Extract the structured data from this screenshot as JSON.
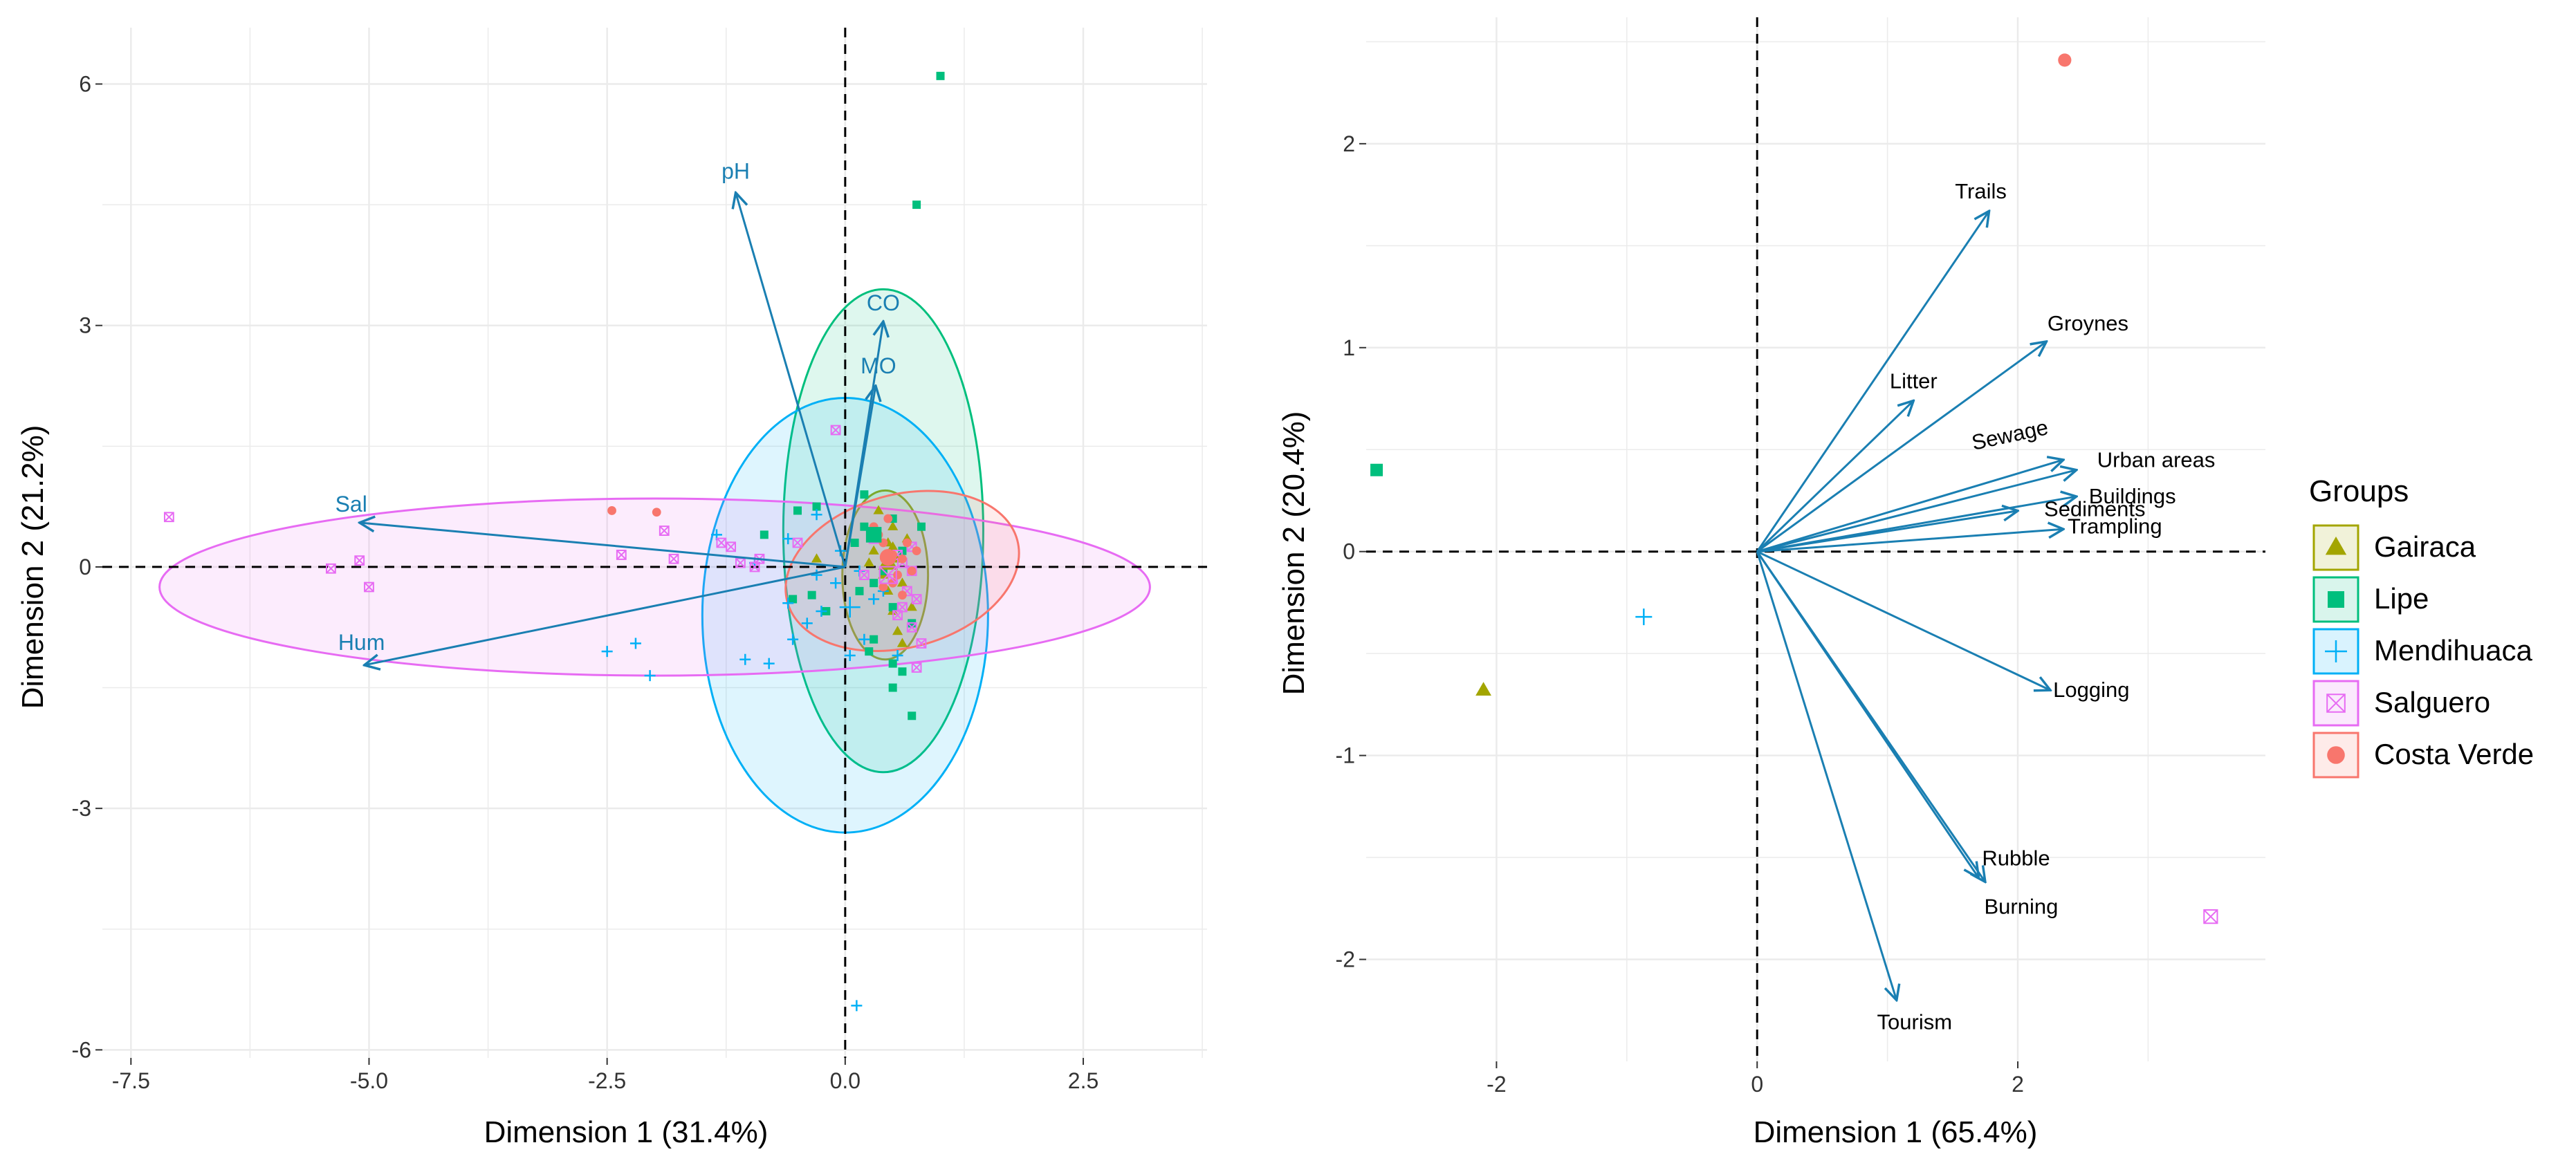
{
  "chart_data": [
    {
      "type": "scatter",
      "subtype": "biplot",
      "xlabel": "Dimension 1 (31.4%)",
      "ylabel": "Dimension 2 (21.2%)",
      "xlim": [
        -7.8,
        3.8
      ],
      "ylim": [
        -6.1,
        6.7
      ],
      "xticks": [
        -7.5,
        -5.0,
        -2.5,
        0.0,
        2.5
      ],
      "xtick_labels": [
        "-7.5",
        "-5.0",
        "-2.5",
        "0.0",
        "2.5"
      ],
      "yticks": [
        -6,
        -3,
        0,
        3,
        6
      ],
      "ytick_labels": [
        "-6",
        "-3",
        "0",
        "3",
        "6"
      ],
      "grid": true,
      "reference_lines": {
        "x": 0,
        "y": 0
      },
      "groups": [
        {
          "name": "Gairaca",
          "color": "#a3a500",
          "marker": "triangle",
          "points": [
            [
              0.3,
              0.2
            ],
            [
              0.45,
              0.3
            ],
            [
              0.55,
              0.1
            ],
            [
              0.4,
              -0.1
            ],
            [
              0.6,
              -0.2
            ],
            [
              0.5,
              0.5
            ],
            [
              0.35,
              0.7
            ],
            [
              0.7,
              -0.5
            ],
            [
              0.55,
              -0.8
            ],
            [
              0.45,
              -0.3
            ],
            [
              0.25,
              0.05
            ],
            [
              0.65,
              0.35
            ],
            [
              0.5,
              -0.55
            ],
            [
              -0.3,
              0.1
            ],
            [
              0.6,
              -0.95
            ],
            [
              0.42,
              0.15
            ],
            [
              0.5,
              0.25
            ]
          ],
          "ellipse": {
            "cx": 0.42,
            "cy": -0.1,
            "rx": 0.45,
            "ry": 1.05,
            "angle": 0
          }
        },
        {
          "name": "Lipe",
          "color": "#00bf7d",
          "marker": "square",
          "points": [
            [
              1.0,
              6.1
            ],
            [
              0.75,
              4.5
            ],
            [
              0.2,
              0.9
            ],
            [
              -0.5,
              0.7
            ],
            [
              -0.85,
              0.4
            ],
            [
              -0.3,
              0.75
            ],
            [
              0.2,
              0.5
            ],
            [
              0.1,
              0.3
            ],
            [
              0.3,
              0.4
            ],
            [
              0.5,
              0.6
            ],
            [
              0.8,
              0.5
            ],
            [
              0.6,
              0.2
            ],
            [
              0.3,
              -0.2
            ],
            [
              0.5,
              -0.5
            ],
            [
              0.7,
              -0.7
            ],
            [
              0.5,
              -1.2
            ],
            [
              0.6,
              -1.3
            ],
            [
              0.5,
              -1.5
            ],
            [
              0.7,
              -1.85
            ],
            [
              0.3,
              -0.9
            ],
            [
              -0.55,
              -0.4
            ],
            [
              -0.2,
              -0.55
            ],
            [
              0.15,
              -0.3
            ],
            [
              0.4,
              -0.05
            ],
            [
              -0.35,
              -0.35
            ],
            [
              0.25,
              -1.05
            ]
          ],
          "ellipse": {
            "cx": 0.4,
            "cy": 0.45,
            "rx": 1.05,
            "ry": 3.0,
            "angle": 0
          }
        },
        {
          "name": "Mendihuaca",
          "color": "#00b0f6",
          "marker": "cross",
          "points": [
            [
              0.12,
              -5.45
            ],
            [
              -2.5,
              -1.05
            ],
            [
              -2.2,
              -0.95
            ],
            [
              -2.05,
              -1.35
            ],
            [
              -1.05,
              -1.15
            ],
            [
              -0.8,
              -1.2
            ],
            [
              -0.55,
              -0.9
            ],
            [
              -0.4,
              -0.7
            ],
            [
              -0.6,
              -0.45
            ],
            [
              -0.25,
              -0.55
            ],
            [
              -1.35,
              0.4
            ],
            [
              -0.3,
              0.65
            ],
            [
              -0.05,
              0.2
            ],
            [
              0.05,
              -1.1
            ],
            [
              0.2,
              -0.9
            ],
            [
              0.3,
              -0.4
            ],
            [
              -0.1,
              -0.2
            ],
            [
              0.4,
              -0.3
            ],
            [
              0.55,
              -1.1
            ],
            [
              -0.95,
              0.05
            ],
            [
              -0.6,
              0.35
            ],
            [
              -0.3,
              -0.1
            ],
            [
              0.15,
              -0.05
            ]
          ],
          "ellipse": {
            "cx": 0.0,
            "cy": -0.6,
            "rx": 1.5,
            "ry": 2.7,
            "angle": 0
          }
        },
        {
          "name": "Salguero",
          "color": "#e76bf3",
          "marker": "square-x",
          "points": [
            [
              -7.1,
              0.62
            ],
            [
              -5.4,
              -0.02
            ],
            [
              -5.1,
              0.08
            ],
            [
              -5.0,
              -0.25
            ],
            [
              -2.35,
              0.15
            ],
            [
              -1.9,
              0.45
            ],
            [
              -1.8,
              0.1
            ],
            [
              -1.3,
              0.3
            ],
            [
              -1.2,
              0.25
            ],
            [
              -1.1,
              0.05
            ],
            [
              -0.9,
              0.1
            ],
            [
              -0.95,
              0.0
            ],
            [
              -0.1,
              1.7
            ],
            [
              -0.5,
              0.3
            ],
            [
              0.2,
              -0.1
            ],
            [
              0.3,
              0.35
            ],
            [
              0.45,
              0.1
            ],
            [
              0.55,
              0.15
            ],
            [
              0.6,
              0.05
            ],
            [
              0.7,
              -0.05
            ],
            [
              0.5,
              -0.15
            ],
            [
              0.65,
              -0.3
            ],
            [
              0.75,
              -0.4
            ],
            [
              0.55,
              -0.6
            ],
            [
              0.7,
              -0.75
            ],
            [
              0.8,
              -0.95
            ],
            [
              0.75,
              -1.25
            ],
            [
              0.6,
              -0.5
            ],
            [
              0.7,
              0.25
            ]
          ],
          "ellipse": {
            "cx": -2.0,
            "cy": -0.25,
            "rx": 5.2,
            "ry": 1.1,
            "angle": 0
          }
        },
        {
          "name": "Costa Verde",
          "color": "#f8766d",
          "marker": "circle",
          "points": [
            [
              -2.45,
              0.7
            ],
            [
              -1.98,
              0.68
            ],
            [
              0.3,
              0.5
            ],
            [
              0.35,
              0.4
            ],
            [
              0.45,
              0.6
            ],
            [
              0.5,
              0.15
            ],
            [
              0.6,
              0.1
            ],
            [
              0.55,
              -0.1
            ],
            [
              0.4,
              -0.25
            ],
            [
              0.7,
              -0.05
            ],
            [
              0.65,
              0.3
            ],
            [
              0.6,
              -0.35
            ],
            [
              0.75,
              0.2
            ],
            [
              0.5,
              -0.2
            ],
            [
              0.4,
              0.3
            ]
          ],
          "ellipse": {
            "cx": 0.6,
            "cy": -0.05,
            "rx": 1.25,
            "ry": 0.95,
            "angle": -15
          }
        }
      ],
      "group_means": [
        {
          "name": "Gairaca",
          "x": 0.45,
          "y": 0.05
        },
        {
          "name": "Lipe",
          "x": 0.3,
          "y": 0.4
        },
        {
          "name": "Mendihuaca",
          "x": 0.05,
          "y": -0.5
        },
        {
          "name": "Salguero",
          "x": 0.45,
          "y": -0.1
        },
        {
          "name": "Costa Verde",
          "x": 0.45,
          "y": 0.12
        }
      ],
      "arrows": [
        {
          "label": "pH",
          "x": -1.15,
          "y": 4.65
        },
        {
          "label": "CO",
          "x": 0.4,
          "y": 3.05
        },
        {
          "label": "MO",
          "x": 0.32,
          "y": 2.25
        },
        {
          "label": "Sal",
          "x": -5.1,
          "y": 0.55
        },
        {
          "label": "Hum",
          "x": -5.05,
          "y": -1.22
        }
      ]
    },
    {
      "type": "scatter",
      "subtype": "biplot",
      "xlabel": "Dimension 1 (65.4%)",
      "ylabel": "Dimension 2 (20.4%)",
      "xlim": [
        -3.0,
        3.9
      ],
      "ylim": [
        -2.5,
        2.62
      ],
      "xticks": [
        -2,
        0,
        2
      ],
      "xtick_labels": [
        "-2",
        "0",
        "2"
      ],
      "yticks": [
        -2,
        -1,
        0,
        1,
        2
      ],
      "ytick_labels": [
        "-2",
        "-1",
        "0",
        "1",
        "2"
      ],
      "grid": true,
      "reference_lines": {
        "x": 0,
        "y": 0
      },
      "points": [
        {
          "group": "Gairaca",
          "x": -2.1,
          "y": -0.68
        },
        {
          "group": "Lipe",
          "x": -2.92,
          "y": 0.4
        },
        {
          "group": "Mendihuaca",
          "x": -0.87,
          "y": -0.32
        },
        {
          "group": "Salguero",
          "x": 3.48,
          "y": -1.79
        },
        {
          "group": "Costa Verde",
          "x": 2.36,
          "y": 2.41
        }
      ],
      "arrows": [
        {
          "label": "Trails",
          "x": 1.78,
          "y": 1.67
        },
        {
          "label": "Groynes",
          "x": 2.22,
          "y": 1.03
        },
        {
          "label": "Litter",
          "x": 1.2,
          "y": 0.74
        },
        {
          "label": "Sewage",
          "x": 2.35,
          "y": 0.45
        },
        {
          "label": "Urban areas",
          "x": 2.45,
          "y": 0.4
        },
        {
          "label": "Buildings",
          "x": 2.45,
          "y": 0.27
        },
        {
          "label": "Sediments",
          "x": 2.0,
          "y": 0.2
        },
        {
          "label": "Trampling",
          "x": 2.35,
          "y": 0.11
        },
        {
          "label": "Logging",
          "x": 2.25,
          "y": -0.68
        },
        {
          "label": "Rubble",
          "x": 1.7,
          "y": -1.6
        },
        {
          "label": "Burning",
          "x": 1.75,
          "y": -1.62
        },
        {
          "label": "Tourism",
          "x": 1.07,
          "y": -2.2
        }
      ]
    }
  ],
  "legend": {
    "title": "Groups",
    "placement": "right",
    "items": [
      {
        "name": "Gairaca",
        "color": "#a3a500",
        "marker": "triangle"
      },
      {
        "name": "Lipe",
        "color": "#00bf7d",
        "marker": "square"
      },
      {
        "name": "Mendihuaca",
        "color": "#00b0f6",
        "marker": "cross"
      },
      {
        "name": "Salguero",
        "color": "#e76bf3",
        "marker": "square-x"
      },
      {
        "name": "Costa Verde",
        "color": "#f8766d",
        "marker": "circle"
      }
    ]
  },
  "colors": {
    "arrow": "#1a7fb2",
    "grid": "#ebebeb",
    "text": "#000000",
    "axis_text": "#333333"
  }
}
